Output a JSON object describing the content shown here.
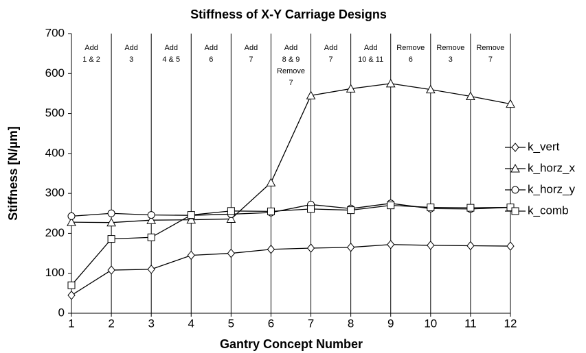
{
  "chart_data": {
    "type": "line",
    "title": "Stiffness of X-Y Carriage Designs",
    "x_label": "Gantry Concept Number",
    "y_label": "Stiffness [N/µm]",
    "x": [
      1,
      2,
      3,
      4,
      5,
      6,
      7,
      8,
      9,
      10,
      11,
      12
    ],
    "xlim": [
      1,
      12
    ],
    "xticks": [
      1,
      2,
      3,
      4,
      5,
      6,
      7,
      8,
      9,
      10,
      11,
      12
    ],
    "ylim": [
      0,
      700
    ],
    "yticks": [
      0,
      100,
      200,
      300,
      400,
      500,
      600,
      700
    ],
    "grid": "x",
    "legend": "right",
    "annotations": [
      [
        "Add",
        "1 & 2"
      ],
      [
        "Add",
        "3"
      ],
      [
        "Add",
        "4 & 5"
      ],
      [
        "Add",
        "6"
      ],
      [
        "Add",
        "7"
      ],
      [
        "Add",
        "8 & 9",
        "Remove",
        "7"
      ],
      [
        "Add",
        "7"
      ],
      [
        "Add",
        "10 & 11"
      ],
      [
        "Remove",
        "6"
      ],
      [
        "Remove",
        "3"
      ],
      [
        "Remove",
        "7"
      ]
    ],
    "series": [
      {
        "name": "k_vert",
        "color": "#000000",
        "marker": "diamond",
        "values": [
          45,
          108,
          110,
          145,
          150,
          160,
          163,
          165,
          172,
          170,
          169,
          168
        ]
      },
      {
        "name": "k_horz_x",
        "color": "#000000",
        "marker": "triangle",
        "values": [
          228,
          227,
          233,
          234,
          236,
          327,
          545,
          562,
          575,
          560,
          543,
          524
        ]
      },
      {
        "name": "k_horz_y",
        "color": "#000000",
        "marker": "circle",
        "values": [
          243,
          250,
          246,
          245,
          248,
          252,
          272,
          262,
          275,
          262,
          261,
          265
        ]
      },
      {
        "name": "k_comb",
        "color": "#000000",
        "marker": "square",
        "values": [
          70,
          186,
          190,
          246,
          256,
          255,
          261,
          258,
          270,
          265,
          264,
          265
        ]
      }
    ]
  }
}
